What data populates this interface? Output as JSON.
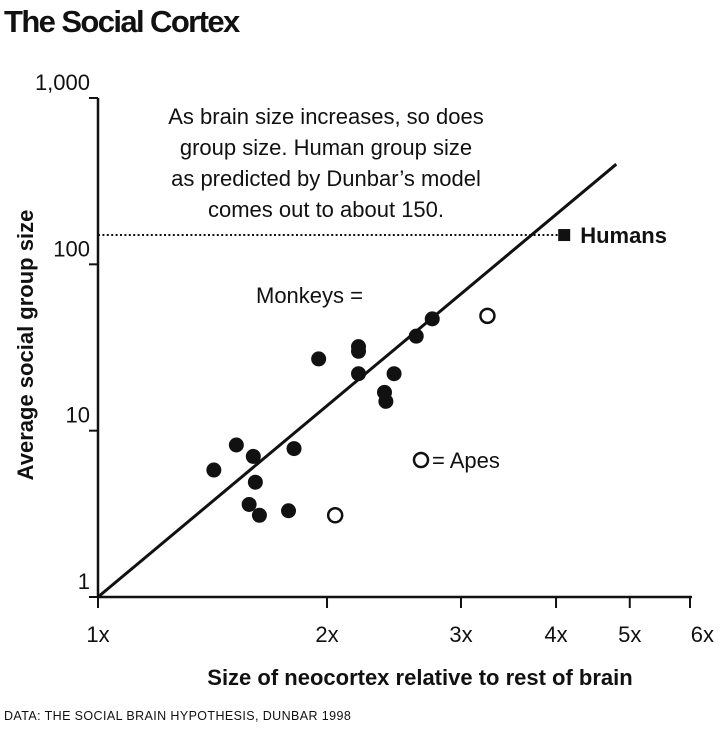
{
  "title": "The Social Cortex",
  "source": "DATA: THE SOCIAL BRAIN HYPOTHESIS, DUNBAR 1998",
  "chart_data": {
    "type": "scatter",
    "title": "The Social Cortex",
    "xlabel": "Size of neocortex relative to rest of brain",
    "ylabel": "Average social group size",
    "xscale": "log",
    "yscale": "log",
    "xlim": [
      1,
      6
    ],
    "ylim": [
      1,
      1000
    ],
    "xticks": [
      1,
      2,
      3,
      4,
      5,
      6
    ],
    "xtick_labels": [
      "1x",
      "2x",
      "3x",
      "4x",
      "5x",
      "6x"
    ],
    "yticks": [
      1,
      10,
      100,
      1000
    ],
    "ytick_labels": [
      "1",
      "10",
      "100",
      "1,000"
    ],
    "grid": false,
    "annotation": "As brain size increases, so does group size. Human group size as predicted by Dunbar’s model comes out to about 150.",
    "legend": [
      {
        "label": "Monkeys =",
        "marker": "filled-circle"
      },
      {
        "label": "= Apes",
        "marker": "open-circle"
      }
    ],
    "series": [
      {
        "name": "Monkeys",
        "marker": "filled-circle",
        "points": [
          {
            "x": 1.42,
            "y": 5.8
          },
          {
            "x": 1.52,
            "y": 8.2
          },
          {
            "x": 1.6,
            "y": 7.0
          },
          {
            "x": 1.61,
            "y": 4.9
          },
          {
            "x": 1.58,
            "y": 3.6
          },
          {
            "x": 1.63,
            "y": 3.1
          },
          {
            "x": 1.78,
            "y": 3.3
          },
          {
            "x": 1.81,
            "y": 7.8
          },
          {
            "x": 1.95,
            "y": 27
          },
          {
            "x": 2.2,
            "y": 32
          },
          {
            "x": 2.2,
            "y": 30
          },
          {
            "x": 2.2,
            "y": 22
          },
          {
            "x": 2.38,
            "y": 17
          },
          {
            "x": 2.39,
            "y": 15
          },
          {
            "x": 2.45,
            "y": 22
          },
          {
            "x": 2.62,
            "y": 37
          },
          {
            "x": 2.75,
            "y": 47
          }
        ]
      },
      {
        "name": "Apes",
        "marker": "open-circle",
        "points": [
          {
            "x": 2.05,
            "y": 3.1
          },
          {
            "x": 3.25,
            "y": 49
          }
        ]
      },
      {
        "name": "Humans",
        "marker": "filled-square",
        "points": [
          {
            "x": 4.1,
            "y": 150,
            "label": "Humans"
          }
        ]
      }
    ],
    "regression_line": {
      "x": [
        1,
        4.8
      ],
      "y": [
        1,
        400
      ]
    },
    "reference_line": {
      "y": 150,
      "style": "dotted",
      "x_from": 1,
      "x_to": 4.1
    }
  }
}
